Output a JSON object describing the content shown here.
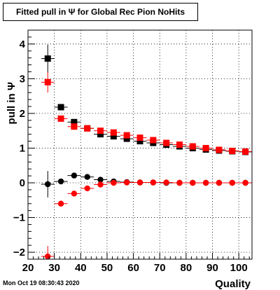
{
  "chart_data": {
    "type": "scatter",
    "title": "Fitted pull in  Ψ  for Global Rec Pion NoHits",
    "xlabel": "Quality",
    "ylabel": "pull in  Ψ",
    "xlim": [
      20,
      105
    ],
    "ylim": [
      -2.2,
      4.4
    ],
    "xticks": [
      20,
      30,
      40,
      50,
      60,
      70,
      80,
      90,
      100
    ],
    "yticks": [
      -2,
      -1,
      0,
      1,
      2,
      3,
      4
    ],
    "grid": true,
    "series": [
      {
        "marker": "square",
        "color": "#000000",
        "x": [
          27.5,
          32.5,
          37.5,
          42.5,
          47.5,
          52.5,
          57.5,
          62.5,
          67.5,
          72.5,
          77.5,
          82.5,
          87.5,
          92.5,
          97.5,
          102.5
        ],
        "y": [
          3.58,
          2.18,
          1.75,
          1.57,
          1.4,
          1.34,
          1.27,
          1.2,
          1.15,
          1.1,
          1.05,
          1.0,
          0.96,
          0.93,
          0.91,
          0.89
        ],
        "yerr": [
          0.4,
          0.07,
          0.05,
          0.04,
          0.03,
          0.03,
          0.03,
          0.03,
          0.03,
          0.03,
          0.03,
          0.03,
          0.03,
          0.03,
          0.03,
          0.03
        ]
      },
      {
        "marker": "square",
        "color": "#ff0000",
        "x": [
          27.5,
          32.5,
          37.5,
          42.5,
          47.5,
          52.5,
          57.5,
          62.5,
          67.5,
          72.5,
          77.5,
          82.5,
          87.5,
          92.5,
          97.5,
          102.5
        ],
        "y": [
          2.9,
          1.85,
          1.62,
          1.57,
          1.5,
          1.45,
          1.37,
          1.3,
          1.23,
          1.15,
          1.1,
          1.05,
          1.0,
          0.95,
          0.92,
          0.9
        ],
        "yerr": [
          0.3,
          0.06,
          0.05,
          0.04,
          0.03,
          0.03,
          0.03,
          0.03,
          0.03,
          0.03,
          0.03,
          0.03,
          0.03,
          0.03,
          0.03,
          0.03
        ]
      },
      {
        "marker": "circle",
        "color": "#000000",
        "x": [
          27.5,
          32.5,
          37.5,
          42.5,
          47.5,
          52.5,
          57.5,
          62.5,
          67.5,
          72.5,
          77.5,
          82.5,
          87.5,
          92.5,
          97.5,
          102.5
        ],
        "y": [
          -0.04,
          0.04,
          0.21,
          0.17,
          0.09,
          0.04,
          0.02,
          0.01,
          0.01,
          0.0,
          0.0,
          0.0,
          0.0,
          0.0,
          0.0,
          0.0
        ],
        "yerr": [
          0.38,
          0.06,
          0.05,
          0.04,
          0.03,
          0.03,
          0.03,
          0.03,
          0.03,
          0.03,
          0.03,
          0.03,
          0.03,
          0.03,
          0.03,
          0.03
        ]
      },
      {
        "marker": "circle",
        "color": "#ff0000",
        "x": [
          27.5,
          32.5,
          37.5,
          42.5,
          47.5,
          52.5,
          57.5,
          62.5,
          67.5,
          72.5,
          77.5,
          82.5,
          87.5,
          92.5,
          97.5,
          102.5
        ],
        "y": [
          -2.12,
          -0.6,
          -0.31,
          -0.16,
          -0.05,
          0.0,
          0.01,
          0.01,
          0.01,
          0.01,
          0.0,
          0.0,
          0.0,
          0.0,
          0.0,
          0.0
        ],
        "yerr": [
          0.3,
          0.06,
          0.05,
          0.04,
          0.03,
          0.03,
          0.03,
          0.03,
          0.03,
          0.03,
          0.03,
          0.03,
          0.03,
          0.03,
          0.03,
          0.03
        ]
      }
    ]
  },
  "footer": {
    "timestamp": "Mon Oct 19 08:30:43 2020"
  }
}
